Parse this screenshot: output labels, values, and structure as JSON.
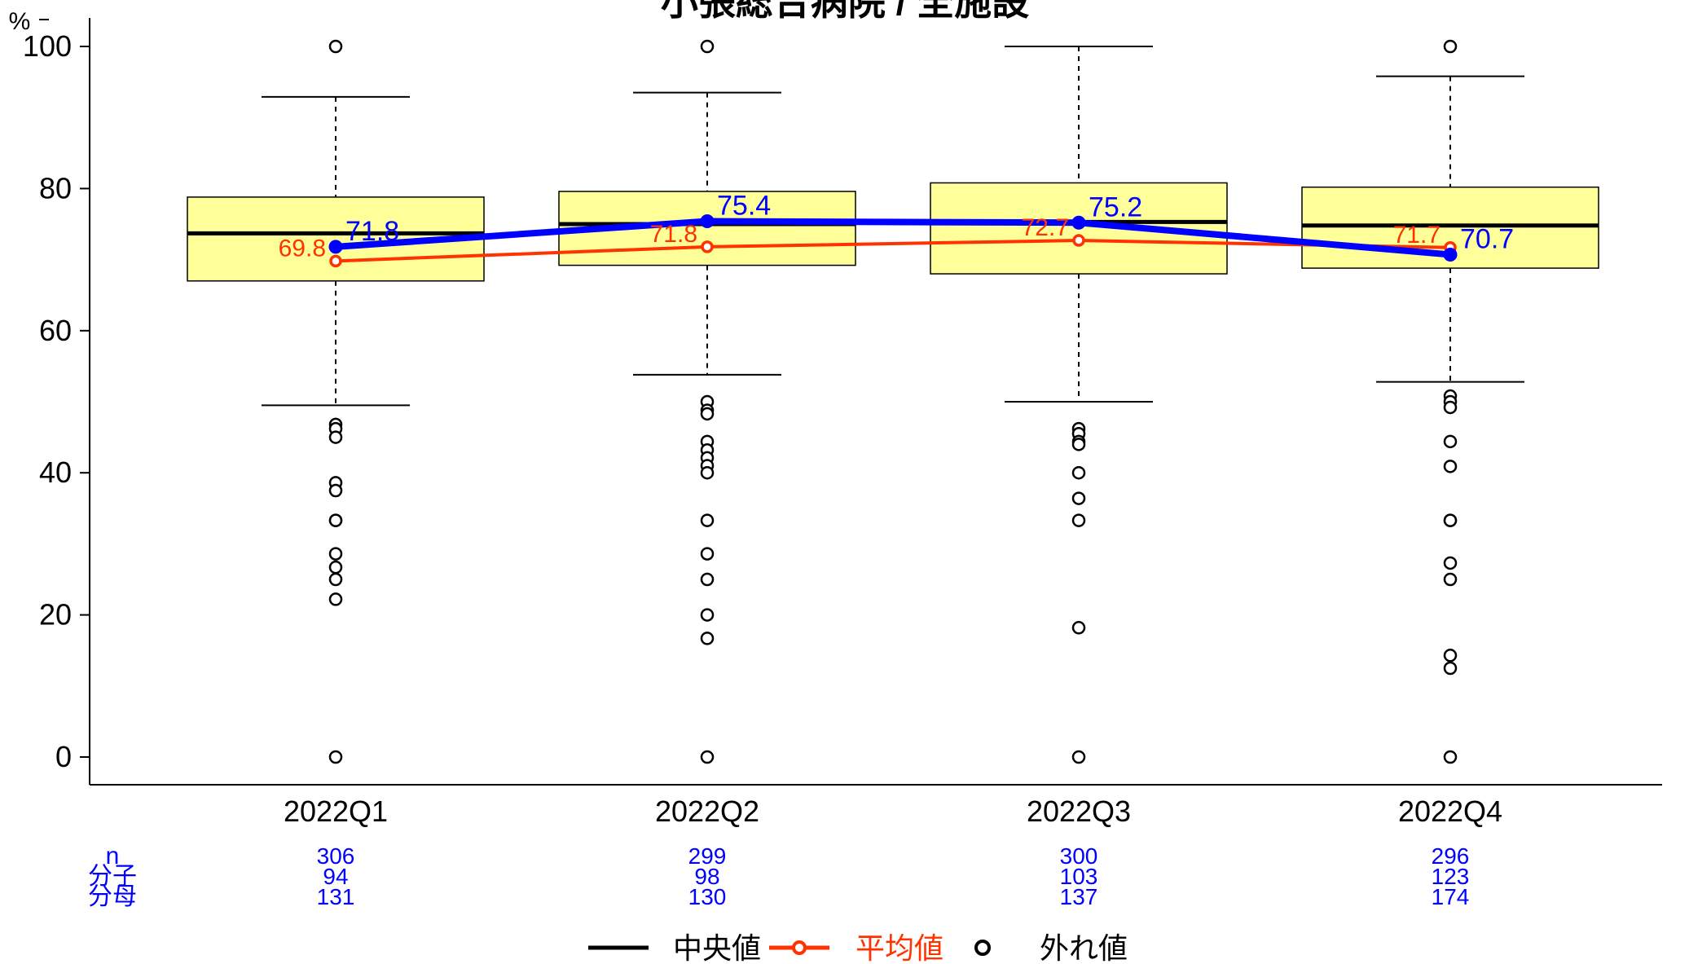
{
  "chart_data": {
    "type": "box",
    "title": "小張総合病院 / 全施設",
    "ylabel": "%",
    "ylim": [
      0,
      100
    ],
    "yticks": [
      0,
      20,
      40,
      60,
      80,
      100
    ],
    "categories": [
      "2022Q1",
      "2022Q2",
      "2022Q3",
      "2022Q4"
    ],
    "boxes": [
      {
        "whisker_low": 49.5,
        "q1": 67.0,
        "median": 73.7,
        "q3": 78.8,
        "whisker_high": 92.9,
        "outliers": [
          100,
          46.8,
          46.2,
          45.0,
          38.6,
          37.5,
          33.3,
          33.3,
          28.6,
          26.7,
          25.0,
          22.2,
          0
        ]
      },
      {
        "whisker_low": 53.8,
        "q1": 69.2,
        "median": 75.0,
        "q3": 79.6,
        "whisker_high": 93.5,
        "outliers": [
          100,
          50.0,
          48.8,
          48.3,
          44.4,
          43.2,
          42.1,
          41.0,
          40.0,
          33.3,
          28.6,
          25.0,
          20.0,
          16.7,
          0
        ]
      },
      {
        "whisker_low": 50.0,
        "q1": 68.0,
        "median": 75.3,
        "q3": 80.8,
        "whisker_high": 100,
        "outliers": [
          46.2,
          45.5,
          44.4,
          44.0,
          40.0,
          36.4,
          33.3,
          18.2,
          0
        ]
      },
      {
        "whisker_low": 52.8,
        "q1": 68.8,
        "median": 74.8,
        "q3": 80.2,
        "whisker_high": 95.8,
        "outliers": [
          100,
          50.8,
          50.0,
          49.2,
          44.4,
          40.9,
          33.3,
          33.3,
          27.3,
          25.0,
          14.3,
          12.5,
          0
        ]
      }
    ],
    "series": [
      {
        "name": "平均値",
        "color": "#ff3300",
        "values": [
          69.8,
          71.8,
          72.7,
          71.7
        ]
      },
      {
        "color": "#0000ff",
        "values": [
          71.8,
          75.4,
          75.2,
          70.7
        ]
      }
    ],
    "stats_labels": [
      "n",
      "分子",
      "分母"
    ],
    "stats": [
      {
        "n": "306",
        "numerator": "94",
        "denominator": "131"
      },
      {
        "n": "299",
        "numerator": "98",
        "denominator": "130"
      },
      {
        "n": "300",
        "numerator": "103",
        "denominator": "137"
      },
      {
        "n": "296",
        "numerator": "123",
        "denominator": "174"
      }
    ],
    "legend": {
      "position": "bottom",
      "items": [
        {
          "label": "中央値",
          "color": "#000000",
          "kind": "line"
        },
        {
          "label": "平均値",
          "color": "#ff3300",
          "kind": "line-point"
        },
        {
          "label": "外れ値",
          "color": "#000000",
          "kind": "point"
        }
      ]
    },
    "colors": {
      "box_fill": "#ffff99",
      "box_stroke": "#000000",
      "stats_text": "#0000ff"
    }
  }
}
